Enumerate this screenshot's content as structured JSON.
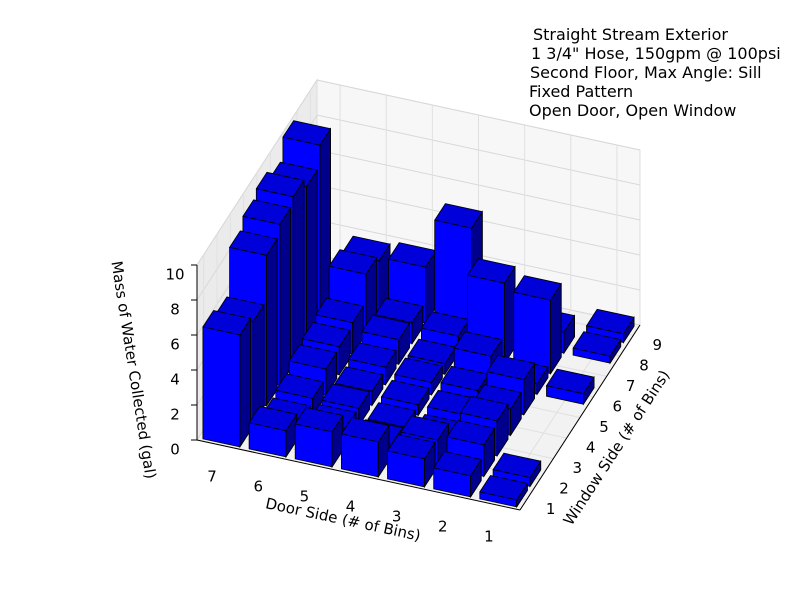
{
  "chart_data": {
    "type": "bar3d",
    "annotation": [
      "Straight Stream Exterior",
      "1 3/4\" Hose, 150gpm @ 100psi",
      "Second Floor, Max Angle: Sill",
      "Fixed Pattern",
      "Open Door, Open Window"
    ],
    "xlabel": "Door Side (# of Bins)",
    "ylabel": "Window Side (# of Bins)",
    "zlabel": "Mass of Water Collected (gal)",
    "x_categories": [
      1,
      2,
      3,
      4,
      5,
      6,
      7
    ],
    "y_categories": [
      1,
      2,
      3,
      4,
      5,
      6,
      7,
      8,
      9
    ],
    "values": [
      [
        0.4,
        0.5,
        null,
        null,
        null,
        0.6,
        null,
        0.4,
        0.5
      ],
      [
        1.2,
        1.8,
        2.0,
        1.5,
        2.0,
        0.6,
        4.2,
        1.2,
        null
      ],
      [
        1.6,
        1.5,
        0.4,
        0.6,
        0.8,
        1.6,
        4.6,
        null,
        null
      ],
      [
        2.0,
        0.7,
        0.5,
        0.6,
        0.7,
        0.6,
        1.0,
        6.0,
        null
      ],
      [
        2.0,
        1.0,
        1.0,
        0.8,
        1.0,
        1.4,
        1.2,
        3.2,
        null
      ],
      [
        1.5,
        0.8,
        1.0,
        1.5,
        1.6,
        1.8,
        3.4,
        3.0,
        null
      ],
      [
        6.4,
        6.0,
        8.6,
        9.2,
        9.6,
        9.0,
        10.2,
        null,
        null
      ]
    ],
    "color": "#0000ff",
    "zlim": [
      0,
      10
    ],
    "zticks": [
      0,
      2,
      4,
      6,
      8,
      10
    ]
  }
}
